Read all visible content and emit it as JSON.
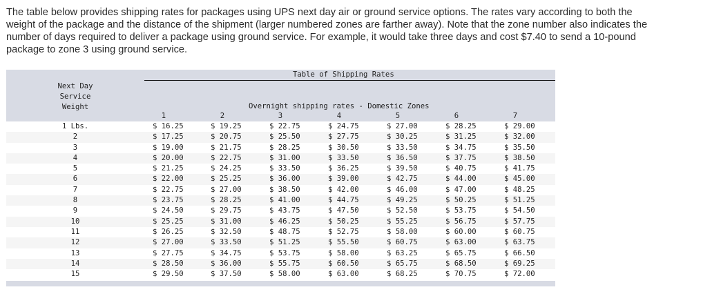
{
  "intro": "The table below provides shipping rates for packages using UPS next day air or ground service options. The rates vary according to both the weight of the package and the distance of the shipment (larger numbered zones are farther away). Note that the zone number also indicates the number of days required to deliver a package using ground service. For example, it would take three days and cost $7.40 to send a 10-pound package to zone 3 using ground service.",
  "table": {
    "title": "Table of Shipping Rates",
    "left_header": [
      "Next Day",
      "Service",
      "Weight"
    ],
    "caption": "Overnight shipping rates - Domestic Zones",
    "zones": [
      "1",
      "2",
      "3",
      "4",
      "5",
      "6",
      "7"
    ],
    "rows": [
      {
        "weight": "1 Lbs.",
        "rates": [
          "$ 16.25",
          "$ 19.25",
          "$ 22.75",
          "$ 24.75",
          "$ 27.00",
          "$ 28.25",
          "$ 29.00"
        ]
      },
      {
        "weight": "2",
        "rates": [
          "$ 17.25",
          "$ 20.75",
          "$ 25.50",
          "$ 27.75",
          "$ 30.25",
          "$ 31.25",
          "$ 32.00"
        ]
      },
      {
        "weight": "3",
        "rates": [
          "$ 19.00",
          "$ 21.75",
          "$ 28.25",
          "$ 30.50",
          "$ 33.50",
          "$ 34.75",
          "$ 35.50"
        ]
      },
      {
        "weight": "4",
        "rates": [
          "$ 20.00",
          "$ 22.75",
          "$ 31.00",
          "$ 33.50",
          "$ 36.50",
          "$ 37.75",
          "$ 38.50"
        ]
      },
      {
        "weight": "5",
        "rates": [
          "$ 21.25",
          "$ 24.25",
          "$ 33.50",
          "$ 36.25",
          "$ 39.50",
          "$ 40.75",
          "$ 41.75"
        ]
      },
      {
        "weight": "6",
        "rates": [
          "$ 22.00",
          "$ 25.25",
          "$ 36.00",
          "$ 39.00",
          "$ 42.75",
          "$ 44.00",
          "$ 45.00"
        ]
      },
      {
        "weight": "7",
        "rates": [
          "$ 22.75",
          "$ 27.00",
          "$ 38.50",
          "$ 42.00",
          "$ 46.00",
          "$ 47.00",
          "$ 48.25"
        ]
      },
      {
        "weight": "8",
        "rates": [
          "$ 23.75",
          "$ 28.25",
          "$ 41.00",
          "$ 44.75",
          "$ 49.25",
          "$ 50.25",
          "$ 51.25"
        ]
      },
      {
        "weight": "9",
        "rates": [
          "$ 24.50",
          "$ 29.75",
          "$ 43.75",
          "$ 47.50",
          "$ 52.50",
          "$ 53.75",
          "$ 54.50"
        ]
      },
      {
        "weight": "10",
        "rates": [
          "$ 25.25",
          "$ 31.00",
          "$ 46.25",
          "$ 50.25",
          "$ 55.25",
          "$ 56.75",
          "$ 57.75"
        ]
      },
      {
        "weight": "11",
        "rates": [
          "$ 26.25",
          "$ 32.50",
          "$ 48.75",
          "$ 52.75",
          "$ 58.00",
          "$ 60.00",
          "$ 60.75"
        ]
      },
      {
        "weight": "12",
        "rates": [
          "$ 27.00",
          "$ 33.50",
          "$ 51.25",
          "$ 55.50",
          "$ 60.75",
          "$ 63.00",
          "$ 63.75"
        ]
      },
      {
        "weight": "13",
        "rates": [
          "$ 27.75",
          "$ 34.75",
          "$ 53.75",
          "$ 58.00",
          "$ 63.25",
          "$ 65.75",
          "$ 66.50"
        ]
      },
      {
        "weight": "14",
        "rates": [
          "$ 28.50",
          "$ 36.00",
          "$ 55.75",
          "$ 60.50",
          "$ 65.75",
          "$ 68.50",
          "$ 69.25"
        ]
      },
      {
        "weight": "15",
        "rates": [
          "$ 29.50",
          "$ 37.50",
          "$ 58.00",
          "$ 63.00",
          "$ 68.25",
          "$ 70.75",
          "$ 72.00"
        ]
      }
    ]
  },
  "colors": {
    "header_bg": "#d8dbe4",
    "stripe": "#f5f5f5",
    "text": "#222222"
  }
}
